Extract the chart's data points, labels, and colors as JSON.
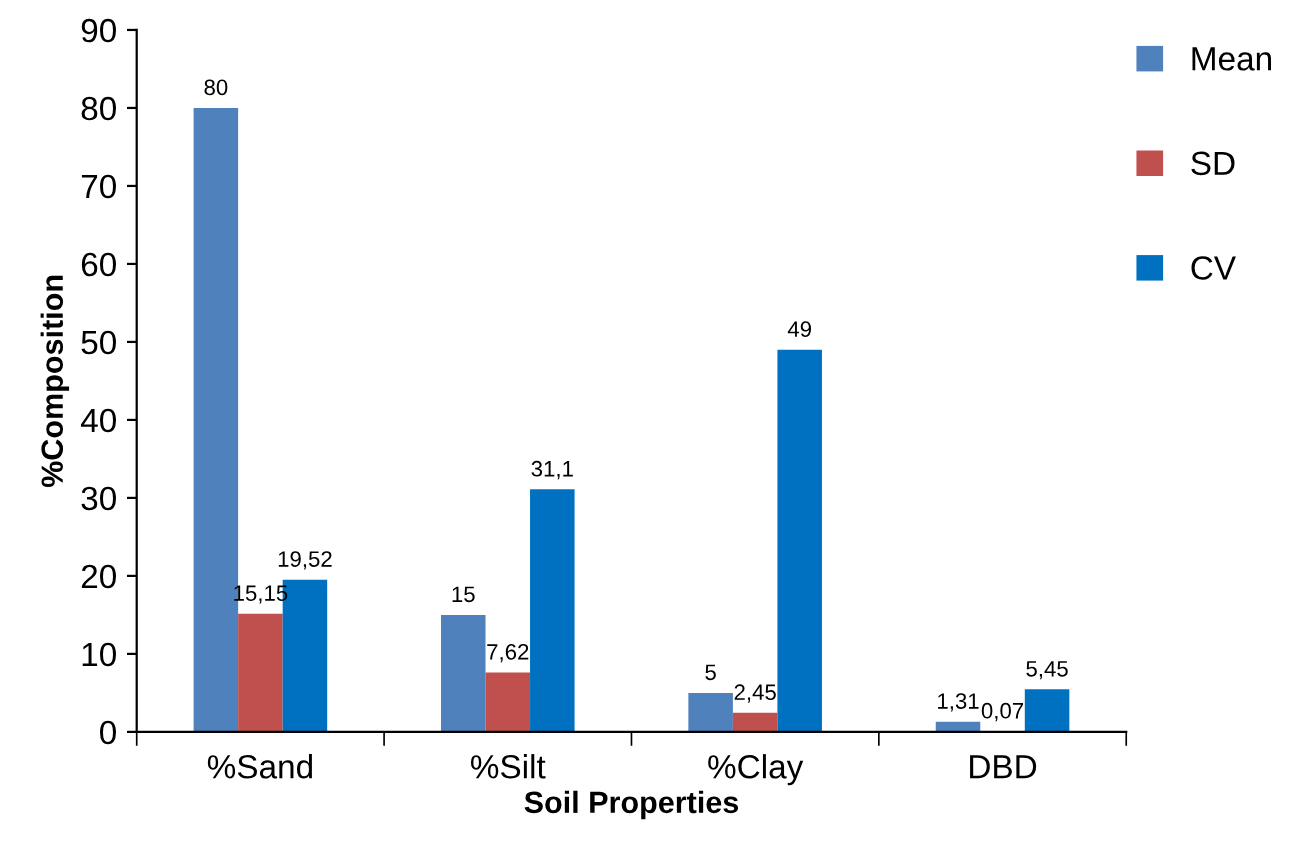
{
  "chart_data": {
    "type": "bar",
    "xlabel": "Soil Properties",
    "ylabel": "%Composition",
    "categories": [
      "%Sand",
      "%Silt",
      "%Clay",
      "DBD"
    ],
    "series": [
      {
        "name": "Mean",
        "color": "#4f81bd",
        "values": [
          80,
          15,
          5,
          1.31
        ],
        "value_labels": [
          "80",
          "15",
          "5",
          "1,31"
        ]
      },
      {
        "name": "SD",
        "color": "#c0504d",
        "values": [
          15.15,
          7.62,
          2.45,
          0.07
        ],
        "value_labels": [
          "15,15",
          "7,62",
          "2,45",
          "0,07"
        ]
      },
      {
        "name": "CV",
        "color": "#0070c0",
        "values": [
          19.52,
          31.1,
          49,
          5.45
        ],
        "value_labels": [
          "19,52",
          "31,1",
          "49",
          "5,45"
        ]
      }
    ],
    "ylim": [
      0,
      90
    ],
    "yticks": [
      0,
      10,
      20,
      30,
      40,
      50,
      60,
      70,
      80,
      90
    ],
    "grid": false,
    "legend": "top right"
  }
}
